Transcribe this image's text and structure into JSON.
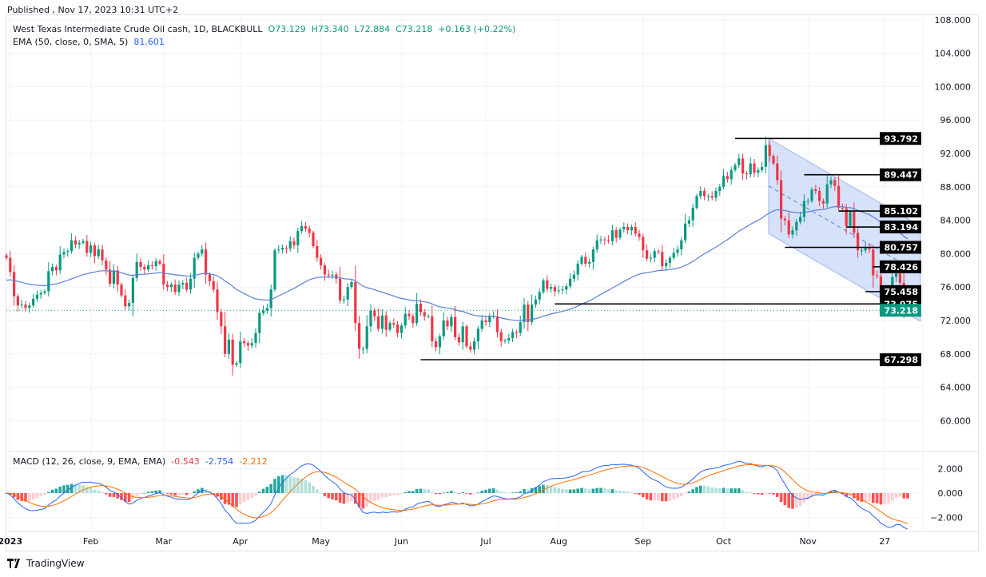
{
  "header": {
    "published": "Published , Nov 17, 2023 10:31 UTC+2"
  },
  "legend": {
    "symbol": "West Texas Intermediate Crude Oil cash, 1D, BLACKBULL",
    "open": "O73.129",
    "high": "H73.340",
    "low": "L72.884",
    "close": "C73.218",
    "change": "+0.163 (+0.22%)",
    "ema_label": "EMA (50, close, 0, SMA, 5)",
    "ema_value": "81.601"
  },
  "macd_legend": {
    "label": "MACD (12, 26, close, 9, EMA, EMA)",
    "hist": "-0.543",
    "macd": "-2.754",
    "signal": "-2.212"
  },
  "footer": {
    "brand": "TradingView"
  },
  "colors": {
    "up": "#089981",
    "down": "#f23645",
    "ema": "#5b7fd6",
    "macd": "#2962ff",
    "signal": "#ff6d00",
    "channel": "#bbcdf7"
  },
  "chart_data": {
    "type": "candlestick",
    "title": "West Texas Intermediate Crude Oil cash, 1D, BLACKBULL",
    "y_ticks": [
      "108.000",
      "104.000",
      "100.000",
      "96.000",
      "92.000",
      "88.000",
      "84.000",
      "80.000",
      "76.000",
      "72.000",
      "68.000",
      "64.000",
      "60.000"
    ],
    "x_ticks": [
      "2023",
      "Feb",
      "Mar",
      "Apr",
      "May",
      "Jun",
      "Jul",
      "Aug",
      "Sep",
      "Oct",
      "Nov",
      "27"
    ],
    "macd_ticks": [
      "2.000",
      "0.000",
      "−2.000"
    ],
    "ylim": [
      58,
      109
    ],
    "last_price": "73.218",
    "closes": [
      79.5,
      77.8,
      74.9,
      73.8,
      73.9,
      73.5,
      73.8,
      74.6,
      75.1,
      75.3,
      75.5,
      77.9,
      78.4,
      78,
      79.9,
      80.2,
      80.3,
      81.6,
      81.1,
      81.3,
      81.5,
      80.1,
      81.0,
      79.7,
      80.5,
      79.2,
      78.1,
      76.4,
      78,
      76.3,
      75,
      73.7,
      74.1,
      77.1,
      79,
      78.4,
      78.1,
      78.6,
      78.5,
      79.1,
      78.8,
      76.3,
      76,
      76.3,
      75.4,
      76.3,
      76.5,
      75.7,
      77,
      79.5,
      80,
      80.5,
      77.5,
      76.7,
      75.7,
      73,
      71.3,
      68,
      69.7,
      66.7,
      66.9,
      69.5,
      69.3,
      69,
      69.3,
      70.5,
      72.9,
      73.2,
      73.5,
      75.7,
      80.4,
      80.5,
      80.7,
      80.6,
      81.5,
      81,
      82.7,
      83.3,
      83,
      82.5,
      80.9,
      79.5,
      78.6,
      77.5,
      77.4,
      77.5,
      77,
      74.4,
      74.5,
      76,
      76.6,
      71.7,
      68.6,
      68.6,
      71.3,
      73.2,
      72.5,
      71,
      72.6,
      70.9,
      71.7,
      71.5,
      70.5,
      71.4,
      72.8,
      72.5,
      71.7,
      74,
      73,
      72.5,
      72.5,
      69.5,
      68.8,
      70.1,
      72,
      71.3,
      72.4,
      70,
      69.4,
      71.3,
      68.9,
      68.5,
      69.5,
      71,
      72,
      71.8,
      72.5,
      72.5,
      70.6,
      69.5,
      69.6,
      69.9,
      70.6,
      70.5,
      71.8,
      73.9,
      71.8,
      73.9,
      74.5,
      75.4,
      76.8,
      75.8,
      76,
      75.5,
      75.6,
      75.7,
      76.1,
      77,
      77.5,
      78.8,
      79.6,
      78.8,
      79,
      80.5,
      81.6,
      81.7,
      81.6,
      81.5,
      82.8,
      81.9,
      82.9,
      83.2,
      82.8,
      83.2,
      82.4,
      82,
      80.4,
      79.4,
      79.5,
      80.3,
      80.2,
      78.5,
      78.9,
      79.5,
      80.1,
      80.5,
      81.6,
      83.6,
      84,
      85.5,
      86.9,
      87.5,
      86.9,
      86.9,
      86.7,
      87.5,
      88,
      89.3,
      88.9,
      90,
      90.6,
      91.4,
      89.6,
      89.5,
      90.8,
      89.7,
      90,
      90.4,
      93,
      91.7,
      90.8,
      88.8,
      84.2,
      84,
      82.3,
      82.8,
      83.8,
      84.4,
      86.3,
      86.3,
      87.7,
      87.5,
      86.3,
      86,
      88.3,
      88.8,
      88.1,
      85.5,
      85.4,
      83.3,
      85,
      82.5,
      80.4,
      80.4,
      80.8,
      80.5,
      77.4,
      77.3,
      75.3,
      75.8,
      75.2,
      77.2,
      78.3,
      76.5,
      72.9,
      73.218
    ],
    "levels": [
      {
        "price": 93.792,
        "label": "93.792"
      },
      {
        "price": 89.447,
        "label": "89.447"
      },
      {
        "price": 85.102,
        "label": "85.102"
      },
      {
        "price": 83.194,
        "label": "83.194"
      },
      {
        "price": 80.757,
        "label": "80.757"
      },
      {
        "price": 78.426,
        "label": "78.426"
      },
      {
        "price": 75.458,
        "label": "75.458"
      },
      {
        "price": 73.975,
        "label": "73.975"
      },
      {
        "price": 67.298,
        "label": "67.298"
      }
    ],
    "indicators": [
      "EMA 50",
      "MACD 12 26 9"
    ]
  }
}
